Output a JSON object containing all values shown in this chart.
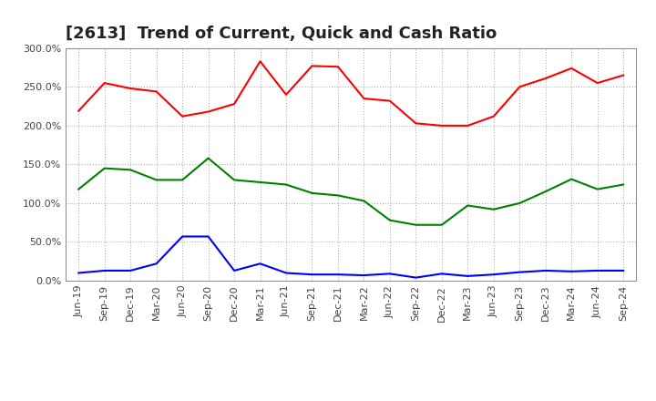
{
  "title": "[2613]  Trend of Current, Quick and Cash Ratio",
  "x_labels": [
    "Jun-19",
    "Sep-19",
    "Dec-19",
    "Mar-20",
    "Jun-20",
    "Sep-20",
    "Dec-20",
    "Mar-21",
    "Jun-21",
    "Sep-21",
    "Dec-21",
    "Mar-22",
    "Jun-22",
    "Sep-22",
    "Dec-22",
    "Mar-23",
    "Jun-23",
    "Sep-23",
    "Dec-23",
    "Mar-24",
    "Jun-24",
    "Sep-24"
  ],
  "current_ratio": [
    219,
    255,
    248,
    244,
    212,
    218,
    228,
    283,
    240,
    277,
    276,
    235,
    232,
    203,
    200,
    200,
    212,
    250,
    261,
    274,
    255,
    265
  ],
  "quick_ratio": [
    118,
    145,
    143,
    130,
    130,
    158,
    130,
    127,
    124,
    113,
    110,
    103,
    78,
    72,
    72,
    97,
    92,
    100,
    115,
    131,
    118,
    124
  ],
  "cash_ratio": [
    10,
    13,
    13,
    22,
    57,
    57,
    13,
    22,
    10,
    8,
    8,
    7,
    9,
    4,
    9,
    6,
    8,
    11,
    13,
    12,
    13,
    13
  ],
  "current_color": "#ff0000",
  "quick_color": "#008000",
  "cash_color": "#0000ff",
  "bg_color": "#ffffff",
  "plot_bg_color": "#ffffff",
  "grid_color": "#b0b0b0",
  "ylim": [
    0,
    300
  ],
  "yticks": [
    0,
    50,
    100,
    150,
    200,
    250,
    300
  ],
  "ytick_labels": [
    "0.0%",
    "50.0%",
    "100.0%",
    "150.0%",
    "200.0%",
    "250.0%",
    "300.0%"
  ],
  "title_fontsize": 13,
  "tick_fontsize": 8,
  "legend_fontsize": 9,
  "linewidth": 1.5
}
